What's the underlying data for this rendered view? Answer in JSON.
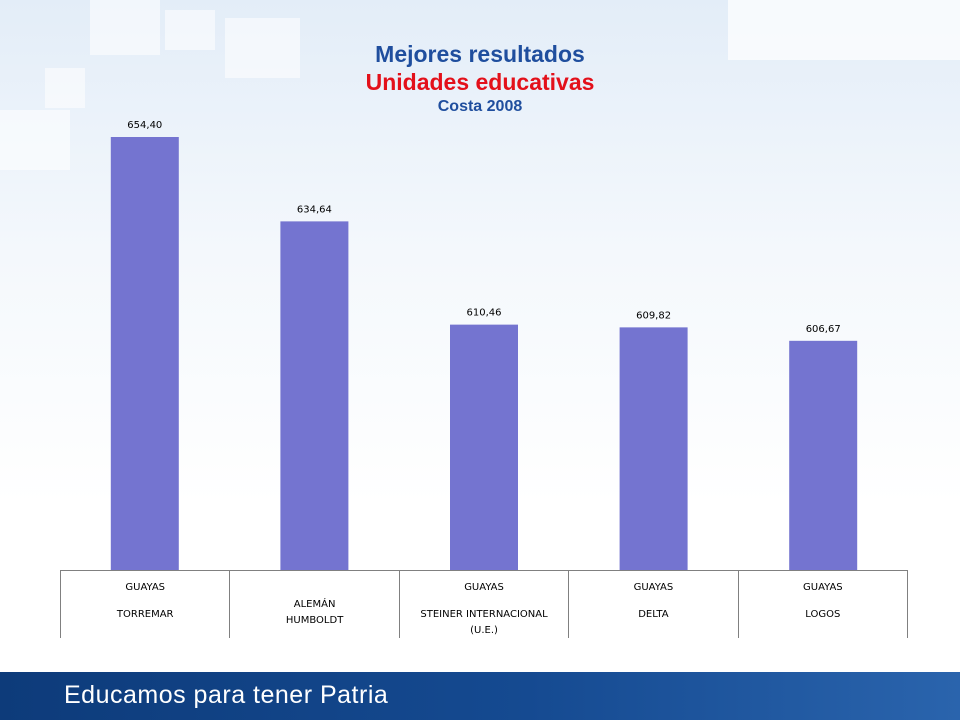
{
  "header": {
    "title": "Mejores resultados",
    "subtitle": "Unidades educativas",
    "subtitle2": "Costa 2008",
    "title_color": "#1f4e9e",
    "subtitle_color": "#e3101a",
    "subtitle2_color": "#1f4e9e"
  },
  "footer": {
    "text": "Educamos para tener Patria"
  },
  "chart_data": {
    "type": "bar",
    "title": "",
    "categories": [
      {
        "province": "GUAYAS",
        "school": "TORREMAR"
      },
      {
        "province": "",
        "school": "ALEMÁN HUMBOLDT"
      },
      {
        "province": "GUAYAS",
        "school": "STEINER INTERNACIONAL (U.E.)"
      },
      {
        "province": "GUAYAS",
        "school": "DELTA"
      },
      {
        "province": "GUAYAS",
        "school": "LOGOS"
      }
    ],
    "values": [
      654.4,
      634.64,
      610.46,
      609.82,
      606.67
    ],
    "value_labels": [
      "654,40",
      "634,64",
      "610,46",
      "609,82",
      "606,67"
    ],
    "bar_color": "#7474d0",
    "ylim": [
      553,
      654.4
    ],
    "grid": false,
    "legend": "none"
  }
}
